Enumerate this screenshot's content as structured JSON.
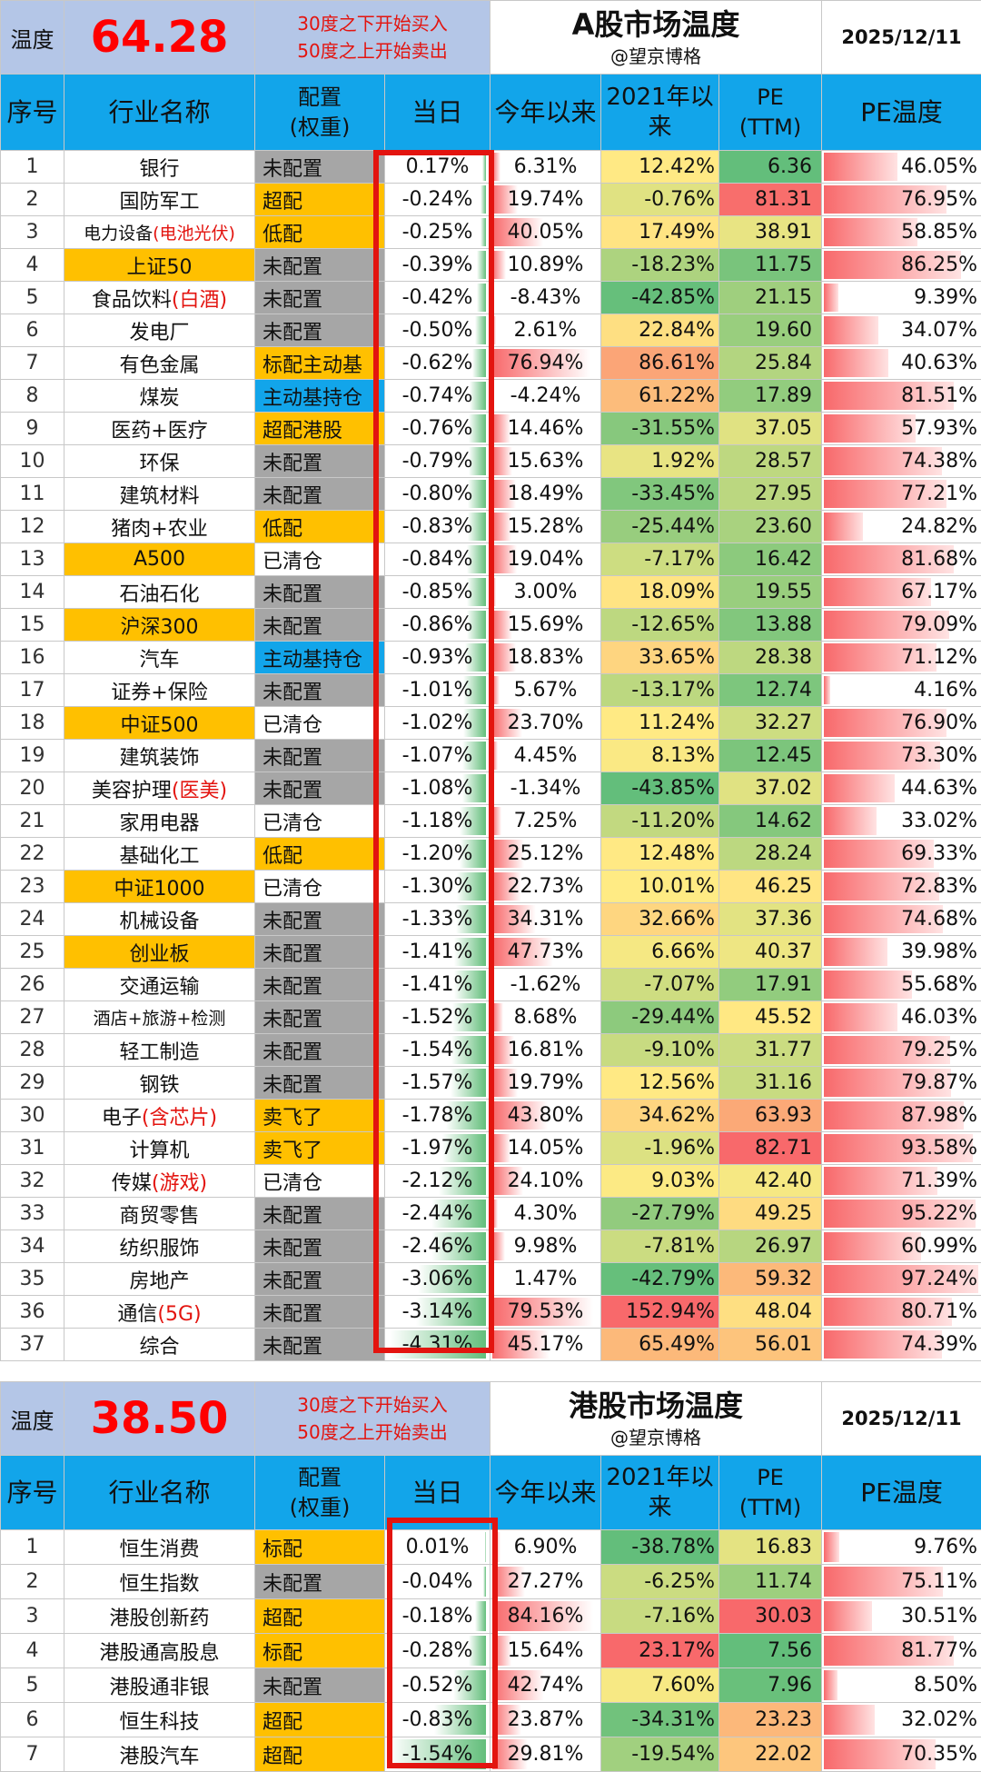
{
  "cfg_colors": {
    "未配置": "#a6a6a6",
    "超配": "#ffc000",
    "低配": "#ffc000",
    "标配主动基": "#ffc000",
    "主动基持仓": "#12a5ea",
    "超配港股": "#ffc000",
    "已清仓": "#ffffff",
    "卖飞了": "#ffc000",
    "标配": "#ffc000"
  },
  "a_share": {
    "temp_label": "温度",
    "temp_value": "64.28",
    "rule_line1": "30度之下开始买入",
    "rule_line2": "50度之上开始卖出",
    "title": "A股市场温度",
    "subtitle": "@望京博格",
    "date": "2025/12/11",
    "columns": [
      "序号",
      "行业名称",
      "配置\n(权重)",
      "当日",
      "今年以来",
      "2021年以\n来",
      "PE\n(TTM)",
      "PE温度"
    ],
    "rows": [
      {
        "idx": "1",
        "name": "银行",
        "name_suffix": "",
        "name_hl": false,
        "cfg": "未配置",
        "day": "0.17%",
        "ytd": "6.31%",
        "y21": "12.42%",
        "pe": "6.36",
        "pt": "46.05%",
        "day_v": 0.17,
        "ytd_v": 6.31,
        "y21_v": 12.42,
        "pe_v": 6.36,
        "pt_v": 46.05
      },
      {
        "idx": "2",
        "name": "国防军工",
        "name_suffix": "",
        "name_hl": false,
        "cfg": "超配",
        "day": "-0.24%",
        "ytd": "19.74%",
        "y21": "-0.76%",
        "pe": "81.31",
        "pt": "76.95%",
        "day_v": -0.24,
        "ytd_v": 19.74,
        "y21_v": -0.76,
        "pe_v": 81.31,
        "pt_v": 76.95
      },
      {
        "idx": "3",
        "name": "电力设备",
        "name_suffix": "(电池光伏)",
        "name_hl": false,
        "name_small": true,
        "cfg": "低配",
        "day": "-0.25%",
        "ytd": "40.05%",
        "y21": "17.49%",
        "pe": "38.91",
        "pt": "58.85%",
        "day_v": -0.25,
        "ytd_v": 40.05,
        "y21_v": 17.49,
        "pe_v": 38.91,
        "pt_v": 58.85
      },
      {
        "idx": "4",
        "name": "上证50",
        "name_suffix": "",
        "name_hl": true,
        "cfg": "未配置",
        "day": "-0.39%",
        "ytd": "10.89%",
        "y21": "-18.23%",
        "pe": "11.75",
        "pt": "86.25%",
        "day_v": -0.39,
        "ytd_v": 10.89,
        "y21_v": -18.23,
        "pe_v": 11.75,
        "pt_v": 86.25
      },
      {
        "idx": "5",
        "name": "食品饮料",
        "name_suffix": "(白酒)",
        "name_hl": false,
        "cfg": "未配置",
        "day": "-0.42%",
        "ytd": "-8.43%",
        "y21": "-42.85%",
        "pe": "21.15",
        "pt": "9.39%",
        "day_v": -0.42,
        "ytd_v": -8.43,
        "y21_v": -42.85,
        "pe_v": 21.15,
        "pt_v": 9.39
      },
      {
        "idx": "6",
        "name": "发电厂",
        "name_suffix": "",
        "name_hl": false,
        "cfg": "未配置",
        "day": "-0.50%",
        "ytd": "2.61%",
        "y21": "22.84%",
        "pe": "19.60",
        "pt": "34.07%",
        "day_v": -0.5,
        "ytd_v": 2.61,
        "y21_v": 22.84,
        "pe_v": 19.6,
        "pt_v": 34.07
      },
      {
        "idx": "7",
        "name": "有色金属",
        "name_suffix": "",
        "name_hl": false,
        "cfg": "标配主动基",
        "day": "-0.62%",
        "ytd": "76.94%",
        "y21": "86.61%",
        "pe": "25.84",
        "pt": "40.63%",
        "day_v": -0.62,
        "ytd_v": 76.94,
        "y21_v": 86.61,
        "pe_v": 25.84,
        "pt_v": 40.63
      },
      {
        "idx": "8",
        "name": "煤炭",
        "name_suffix": "",
        "name_hl": false,
        "cfg": "主动基持仓",
        "day": "-0.74%",
        "ytd": "-4.24%",
        "y21": "61.22%",
        "pe": "17.89",
        "pt": "81.51%",
        "day_v": -0.74,
        "ytd_v": -4.24,
        "y21_v": 61.22,
        "pe_v": 17.89,
        "pt_v": 81.51
      },
      {
        "idx": "9",
        "name": "医药+医疗",
        "name_suffix": "",
        "name_hl": false,
        "cfg": "超配港股",
        "day": "-0.76%",
        "ytd": "14.46%",
        "y21": "-31.55%",
        "pe": "37.05",
        "pt": "57.93%",
        "day_v": -0.76,
        "ytd_v": 14.46,
        "y21_v": -31.55,
        "pe_v": 37.05,
        "pt_v": 57.93
      },
      {
        "idx": "10",
        "name": "环保",
        "name_suffix": "",
        "name_hl": false,
        "cfg": "未配置",
        "day": "-0.79%",
        "ytd": "15.63%",
        "y21": "1.92%",
        "pe": "28.57",
        "pt": "74.38%",
        "day_v": -0.79,
        "ytd_v": 15.63,
        "y21_v": 1.92,
        "pe_v": 28.57,
        "pt_v": 74.38
      },
      {
        "idx": "11",
        "name": "建筑材料",
        "name_suffix": "",
        "name_hl": false,
        "cfg": "未配置",
        "day": "-0.80%",
        "ytd": "18.49%",
        "y21": "-33.45%",
        "pe": "27.95",
        "pt": "77.21%",
        "day_v": -0.8,
        "ytd_v": 18.49,
        "y21_v": -33.45,
        "pe_v": 27.95,
        "pt_v": 77.21
      },
      {
        "idx": "12",
        "name": "猪肉+农业",
        "name_suffix": "",
        "name_hl": false,
        "cfg": "低配",
        "day": "-0.83%",
        "ytd": "15.28%",
        "y21": "-25.44%",
        "pe": "23.60",
        "pt": "24.82%",
        "day_v": -0.83,
        "ytd_v": 15.28,
        "y21_v": -25.44,
        "pe_v": 23.6,
        "pt_v": 24.82
      },
      {
        "idx": "13",
        "name": "A500",
        "name_suffix": "",
        "name_hl": true,
        "cfg": "已清仓",
        "day": "-0.84%",
        "ytd": "19.04%",
        "y21": "-7.17%",
        "pe": "16.42",
        "pt": "81.68%",
        "day_v": -0.84,
        "ytd_v": 19.04,
        "y21_v": -7.17,
        "pe_v": 16.42,
        "pt_v": 81.68
      },
      {
        "idx": "14",
        "name": "石油石化",
        "name_suffix": "",
        "name_hl": false,
        "cfg": "未配置",
        "day": "-0.85%",
        "ytd": "3.00%",
        "y21": "18.09%",
        "pe": "19.55",
        "pt": "67.17%",
        "day_v": -0.85,
        "ytd_v": 3.0,
        "y21_v": 18.09,
        "pe_v": 19.55,
        "pt_v": 67.17
      },
      {
        "idx": "15",
        "name": "沪深300",
        "name_suffix": "",
        "name_hl": true,
        "cfg": "未配置",
        "day": "-0.86%",
        "ytd": "15.69%",
        "y21": "-12.65%",
        "pe": "13.88",
        "pt": "79.09%",
        "day_v": -0.86,
        "ytd_v": 15.69,
        "y21_v": -12.65,
        "pe_v": 13.88,
        "pt_v": 79.09
      },
      {
        "idx": "16",
        "name": "汽车",
        "name_suffix": "",
        "name_hl": false,
        "cfg": "主动基持仓",
        "day": "-0.93%",
        "ytd": "18.83%",
        "y21": "33.65%",
        "pe": "28.38",
        "pt": "71.12%",
        "day_v": -0.93,
        "ytd_v": 18.83,
        "y21_v": 33.65,
        "pe_v": 28.38,
        "pt_v": 71.12
      },
      {
        "idx": "17",
        "name": "证券+保险",
        "name_suffix": "",
        "name_hl": false,
        "cfg": "未配置",
        "day": "-1.01%",
        "ytd": "5.67%",
        "y21": "-13.17%",
        "pe": "12.74",
        "pt": "4.16%",
        "day_v": -1.01,
        "ytd_v": 5.67,
        "y21_v": -13.17,
        "pe_v": 12.74,
        "pt_v": 4.16
      },
      {
        "idx": "18",
        "name": "中证500",
        "name_suffix": "",
        "name_hl": true,
        "cfg": "已清仓",
        "day": "-1.02%",
        "ytd": "23.70%",
        "y21": "11.24%",
        "pe": "32.27",
        "pt": "76.90%",
        "day_v": -1.02,
        "ytd_v": 23.7,
        "y21_v": 11.24,
        "pe_v": 32.27,
        "pt_v": 76.9
      },
      {
        "idx": "19",
        "name": "建筑装饰",
        "name_suffix": "",
        "name_hl": false,
        "cfg": "未配置",
        "day": "-1.07%",
        "ytd": "4.45%",
        "y21": "8.13%",
        "pe": "12.45",
        "pt": "73.30%",
        "day_v": -1.07,
        "ytd_v": 4.45,
        "y21_v": 8.13,
        "pe_v": 12.45,
        "pt_v": 73.3
      },
      {
        "idx": "20",
        "name": "美容护理",
        "name_suffix": "(医美)",
        "name_hl": false,
        "cfg": "未配置",
        "day": "-1.08%",
        "ytd": "-1.34%",
        "y21": "-43.85%",
        "pe": "37.02",
        "pt": "44.63%",
        "day_v": -1.08,
        "ytd_v": -1.34,
        "y21_v": -43.85,
        "pe_v": 37.02,
        "pt_v": 44.63
      },
      {
        "idx": "21",
        "name": "家用电器",
        "name_suffix": "",
        "name_hl": false,
        "cfg": "已清仓",
        "day": "-1.18%",
        "ytd": "7.25%",
        "y21": "-11.20%",
        "pe": "14.62",
        "pt": "33.02%",
        "day_v": -1.18,
        "ytd_v": 7.25,
        "y21_v": -11.2,
        "pe_v": 14.62,
        "pt_v": 33.02
      },
      {
        "idx": "22",
        "name": "基础化工",
        "name_suffix": "",
        "name_hl": false,
        "cfg": "低配",
        "day": "-1.20%",
        "ytd": "25.12%",
        "y21": "12.48%",
        "pe": "28.24",
        "pt": "69.33%",
        "day_v": -1.2,
        "ytd_v": 25.12,
        "y21_v": 12.48,
        "pe_v": 28.24,
        "pt_v": 69.33
      },
      {
        "idx": "23",
        "name": "中证1000",
        "name_suffix": "",
        "name_hl": true,
        "cfg": "已清仓",
        "day": "-1.30%",
        "ytd": "22.73%",
        "y21": "10.01%",
        "pe": "46.25",
        "pt": "72.83%",
        "day_v": -1.3,
        "ytd_v": 22.73,
        "y21_v": 10.01,
        "pe_v": 46.25,
        "pt_v": 72.83
      },
      {
        "idx": "24",
        "name": "机械设备",
        "name_suffix": "",
        "name_hl": false,
        "cfg": "未配置",
        "day": "-1.33%",
        "ytd": "34.31%",
        "y21": "32.66%",
        "pe": "37.36",
        "pt": "74.68%",
        "day_v": -1.33,
        "ytd_v": 34.31,
        "y21_v": 32.66,
        "pe_v": 37.36,
        "pt_v": 74.68
      },
      {
        "idx": "25",
        "name": "创业板",
        "name_suffix": "",
        "name_hl": true,
        "cfg": "未配置",
        "day": "-1.41%",
        "ytd": "47.73%",
        "y21": "6.66%",
        "pe": "40.37",
        "pt": "39.98%",
        "day_v": -1.41,
        "ytd_v": 47.73,
        "y21_v": 6.66,
        "pe_v": 40.37,
        "pt_v": 39.98
      },
      {
        "idx": "26",
        "name": "交通运输",
        "name_suffix": "",
        "name_hl": false,
        "cfg": "未配置",
        "day": "-1.41%",
        "ytd": "-1.62%",
        "y21": "-7.07%",
        "pe": "17.91",
        "pt": "55.68%",
        "day_v": -1.41,
        "ytd_v": -1.62,
        "y21_v": -7.07,
        "pe_v": 17.91,
        "pt_v": 55.68
      },
      {
        "idx": "27",
        "name": "酒店+旅游+检测",
        "name_suffix": "",
        "name_hl": false,
        "name_small": true,
        "cfg": "未配置",
        "day": "-1.52%",
        "ytd": "8.68%",
        "y21": "-29.44%",
        "pe": "45.52",
        "pt": "46.03%",
        "day_v": -1.52,
        "ytd_v": 8.68,
        "y21_v": -29.44,
        "pe_v": 45.52,
        "pt_v": 46.03
      },
      {
        "idx": "28",
        "name": "轻工制造",
        "name_suffix": "",
        "name_hl": false,
        "cfg": "未配置",
        "day": "-1.54%",
        "ytd": "16.81%",
        "y21": "-9.10%",
        "pe": "31.77",
        "pt": "79.25%",
        "day_v": -1.54,
        "ytd_v": 16.81,
        "y21_v": -9.1,
        "pe_v": 31.77,
        "pt_v": 79.25
      },
      {
        "idx": "29",
        "name": "钢铁",
        "name_suffix": "",
        "name_hl": false,
        "cfg": "未配置",
        "day": "-1.57%",
        "ytd": "19.79%",
        "y21": "12.56%",
        "pe": "31.16",
        "pt": "79.87%",
        "day_v": -1.57,
        "ytd_v": 19.79,
        "y21_v": 12.56,
        "pe_v": 31.16,
        "pt_v": 79.87
      },
      {
        "idx": "30",
        "name": "电子",
        "name_suffix": "(含芯片)",
        "name_hl": false,
        "cfg": "卖飞了",
        "day": "-1.78%",
        "ytd": "43.80%",
        "y21": "34.62%",
        "pe": "63.93",
        "pt": "87.98%",
        "day_v": -1.78,
        "ytd_v": 43.8,
        "y21_v": 34.62,
        "pe_v": 63.93,
        "pt_v": 87.98
      },
      {
        "idx": "31",
        "name": "计算机",
        "name_suffix": "",
        "name_hl": false,
        "cfg": "卖飞了",
        "day": "-1.97%",
        "ytd": "14.05%",
        "y21": "-1.96%",
        "pe": "82.71",
        "pt": "93.58%",
        "day_v": -1.97,
        "ytd_v": 14.05,
        "y21_v": -1.96,
        "pe_v": 82.71,
        "pt_v": 93.58
      },
      {
        "idx": "32",
        "name": "传媒",
        "name_suffix": "(游戏)",
        "name_hl": false,
        "cfg": "已清仓",
        "day": "-2.12%",
        "ytd": "24.10%",
        "y21": "9.03%",
        "pe": "42.40",
        "pt": "71.39%",
        "day_v": -2.12,
        "ytd_v": 24.1,
        "y21_v": 9.03,
        "pe_v": 42.4,
        "pt_v": 71.39
      },
      {
        "idx": "33",
        "name": "商贸零售",
        "name_suffix": "",
        "name_hl": false,
        "cfg": "未配置",
        "day": "-2.44%",
        "ytd": "4.30%",
        "y21": "-27.79%",
        "pe": "49.25",
        "pt": "95.22%",
        "day_v": -2.44,
        "ytd_v": 4.3,
        "y21_v": -27.79,
        "pe_v": 49.25,
        "pt_v": 95.22
      },
      {
        "idx": "34",
        "name": "纺织服饰",
        "name_suffix": "",
        "name_hl": false,
        "cfg": "未配置",
        "day": "-2.46%",
        "ytd": "9.98%",
        "y21": "-7.81%",
        "pe": "26.97",
        "pt": "60.99%",
        "day_v": -2.46,
        "ytd_v": 9.98,
        "y21_v": -7.81,
        "pe_v": 26.97,
        "pt_v": 60.99
      },
      {
        "idx": "35",
        "name": "房地产",
        "name_suffix": "",
        "name_hl": false,
        "cfg": "未配置",
        "day": "-3.06%",
        "ytd": "1.47%",
        "y21": "-42.79%",
        "pe": "59.32",
        "pt": "97.24%",
        "day_v": -3.06,
        "ytd_v": 1.47,
        "y21_v": -42.79,
        "pe_v": 59.32,
        "pt_v": 97.24
      },
      {
        "idx": "36",
        "name": "通信",
        "name_suffix": "(5G)",
        "name_hl": false,
        "cfg": "未配置",
        "day": "-3.14%",
        "ytd": "79.53%",
        "y21": "152.94%",
        "pe": "48.04",
        "pt": "80.71%",
        "day_v": -3.14,
        "ytd_v": 79.53,
        "y21_v": 152.94,
        "pe_v": 48.04,
        "pt_v": 80.71
      },
      {
        "idx": "37",
        "name": "综合",
        "name_suffix": "",
        "name_hl": false,
        "cfg": "未配置",
        "day": "-4.31%",
        "ytd": "45.17%",
        "y21": "65.49%",
        "pe": "56.01",
        "pt": "74.39%",
        "day_v": -4.31,
        "ytd_v": 45.17,
        "y21_v": 65.49,
        "pe_v": 56.01,
        "pt_v": 74.39
      }
    ]
  },
  "hk_share": {
    "temp_label": "温度",
    "temp_value": "38.50",
    "rule_line1": "30度之下开始买入",
    "rule_line2": "50度之上开始卖出",
    "title": "港股市场温度",
    "subtitle": "@望京博格",
    "date": "2025/12/11",
    "columns": [
      "序号",
      "行业名称",
      "配置\n(权重)",
      "当日",
      "今年以来",
      "2021年以\n来",
      "PE\n(TTM)",
      "PE温度"
    ],
    "rows": [
      {
        "idx": "1",
        "name": "恒生消费",
        "name_suffix": "",
        "name_hl": false,
        "cfg": "标配",
        "day": "0.01%",
        "ytd": "6.90%",
        "y21": "-38.78%",
        "pe": "16.83",
        "pt": "9.76%",
        "day_v": 0.01,
        "ytd_v": 6.9,
        "y21_v": -38.78,
        "pe_v": 16.83,
        "pt_v": 9.76
      },
      {
        "idx": "2",
        "name": "恒生指数",
        "name_suffix": "",
        "name_hl": false,
        "cfg": "未配置",
        "day": "-0.04%",
        "ytd": "27.27%",
        "y21": "-6.25%",
        "pe": "11.74",
        "pt": "75.11%",
        "day_v": -0.04,
        "ytd_v": 27.27,
        "y21_v": -6.25,
        "pe_v": 11.74,
        "pt_v": 75.11
      },
      {
        "idx": "3",
        "name": "港股创新药",
        "name_suffix": "",
        "name_hl": false,
        "cfg": "超配",
        "day": "-0.18%",
        "ytd": "84.16%",
        "y21": "-7.16%",
        "pe": "30.03",
        "pt": "30.51%",
        "day_v": -0.18,
        "ytd_v": 84.16,
        "y21_v": -7.16,
        "pe_v": 30.03,
        "pt_v": 30.51
      },
      {
        "idx": "4",
        "name": "港股通高股息",
        "name_suffix": "",
        "name_hl": false,
        "cfg": "标配",
        "day": "-0.28%",
        "ytd": "15.64%",
        "y21": "23.17%",
        "pe": "7.56",
        "pt": "81.77%",
        "day_v": -0.28,
        "ytd_v": 15.64,
        "y21_v": 23.17,
        "pe_v": 7.56,
        "pt_v": 81.77
      },
      {
        "idx": "5",
        "name": "港股通非银",
        "name_suffix": "",
        "name_hl": false,
        "cfg": "未配置",
        "day": "-0.52%",
        "ytd": "42.74%",
        "y21": "7.60%",
        "pe": "7.96",
        "pt": "8.50%",
        "day_v": -0.52,
        "ytd_v": 42.74,
        "y21_v": 7.6,
        "pe_v": 7.96,
        "pt_v": 8.5
      },
      {
        "idx": "6",
        "name": "恒生科技",
        "name_suffix": "",
        "name_hl": false,
        "cfg": "超配",
        "day": "-0.83%",
        "ytd": "23.87%",
        "y21": "-34.31%",
        "pe": "23.23",
        "pt": "32.02%",
        "day_v": -0.83,
        "ytd_v": 23.87,
        "y21_v": -34.31,
        "pe_v": 23.23,
        "pt_v": 32.02
      },
      {
        "idx": "7",
        "name": "港股汽车",
        "name_suffix": "",
        "name_hl": false,
        "cfg": "超配",
        "day": "-1.54%",
        "ytd": "29.81%",
        "y21": "-19.54%",
        "pe": "22.02",
        "pt": "70.35%",
        "day_v": -1.54,
        "ytd_v": 29.81,
        "y21_v": -19.54,
        "pe_v": 22.02,
        "pt_v": 70.35
      }
    ]
  }
}
